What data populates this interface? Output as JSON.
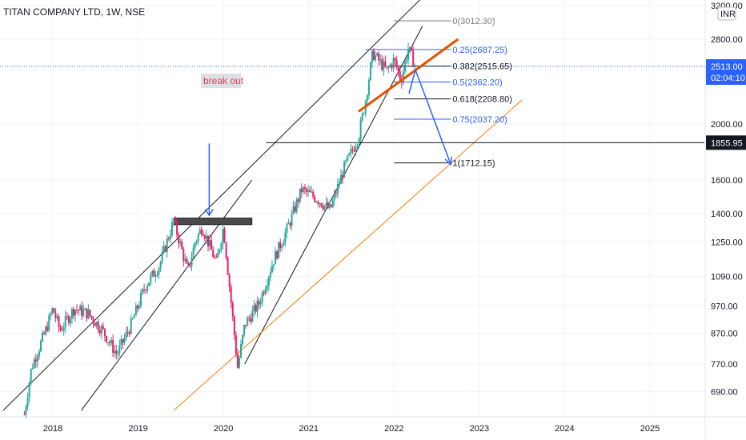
{
  "header": {
    "title": "TITAN COMPANY LTD, 1W, NSE"
  },
  "currency_badge": "INR",
  "chart_data": {
    "type": "candlestick",
    "symbol": "TITAN COMPANY LTD",
    "interval": "1W",
    "exchange": "NSE",
    "currency": "INR",
    "y_scale": "log",
    "ylim": [
      640,
      3300
    ],
    "xlim": [
      "2017-06",
      "2025-12"
    ],
    "x_ticks": [
      "2018",
      "2019",
      "2020",
      "2021",
      "2022",
      "2023",
      "2024",
      "2025"
    ],
    "y_ticks": [
      {
        "value": 3200,
        "label": "3200.00"
      },
      {
        "value": 2800,
        "label": "2800.00"
      },
      {
        "value": 2000,
        "label": "2000.00"
      },
      {
        "value": 1600,
        "label": "1600.00"
      },
      {
        "value": 1400,
        "label": "1400.00"
      },
      {
        "value": 1250,
        "label": "1250.00"
      },
      {
        "value": 1090,
        "label": "1090.00"
      },
      {
        "value": 970,
        "label": "970.00"
      },
      {
        "value": 870,
        "label": "870.00"
      },
      {
        "value": 770,
        "label": "770.00"
      },
      {
        "value": 690,
        "label": "690.00"
      }
    ],
    "price_path": [
      [
        "2017-09",
        630
      ],
      [
        "2017-10",
        760
      ],
      [
        "2017-12",
        880
      ],
      [
        "2018-01",
        960
      ],
      [
        "2018-02",
        880
      ],
      [
        "2018-04",
        960
      ],
      [
        "2018-06",
        940
      ],
      [
        "2018-08",
        880
      ],
      [
        "2018-10",
        800
      ],
      [
        "2018-12",
        900
      ],
      [
        "2019-02",
        1050
      ],
      [
        "2019-04",
        1140
      ],
      [
        "2019-06",
        1360
      ],
      [
        "2019-08",
        1110
      ],
      [
        "2019-09",
        1250
      ],
      [
        "2019-10",
        1330
      ],
      [
        "2019-12",
        1150
      ],
      [
        "2020-01",
        1330
      ],
      [
        "2020-03",
        760
      ],
      [
        "2020-04",
        900
      ],
      [
        "2020-06",
        980
      ],
      [
        "2020-08",
        1160
      ],
      [
        "2020-10",
        1320
      ],
      [
        "2020-12",
        1540
      ],
      [
        "2021-02",
        1490
      ],
      [
        "2021-04",
        1420
      ],
      [
        "2021-06",
        1680
      ],
      [
        "2021-08",
        1900
      ],
      [
        "2021-09",
        2200
      ],
      [
        "2021-10",
        2650
      ],
      [
        "2021-12",
        2470
      ],
      [
        "2022-01",
        2580
      ],
      [
        "2022-02",
        2380
      ],
      [
        "2022-03",
        2700
      ],
      [
        "2022-04",
        2513
      ]
    ],
    "current_price": {
      "value": 2513.0,
      "label": "2513.00",
      "countdown": "02:04:10"
    },
    "horizontal_level": {
      "value": 1855.95,
      "label": "1855.95"
    },
    "fib_retracement": [
      {
        "level": "0",
        "price": 3012.3,
        "label": "0(3012.30)",
        "color": "#787b86"
      },
      {
        "level": "0.25",
        "price": 2687.25,
        "label": "0.25(2687.25)",
        "color": "#2962ff"
      },
      {
        "level": "0.382",
        "price": 2515.65,
        "label": "0.382(2515.65)",
        "color": "#131722"
      },
      {
        "level": "0.5",
        "price": 2362.2,
        "label": "0.5(2362.20)",
        "color": "#2962ff"
      },
      {
        "level": "0.618",
        "price": 2208.8,
        "label": "0.618(2208.80)",
        "color": "#131722"
      },
      {
        "level": "0.75",
        "price": 2037.2,
        "label": "0.75(2037.20)",
        "color": "#2962ff"
      },
      {
        "level": "1",
        "price": 1712.15,
        "label": "1(1712.15)",
        "color": "#131722"
      }
    ],
    "annotations": [
      {
        "text": "break out",
        "type": "label",
        "color": "#e53950"
      },
      {
        "type": "resistance_box",
        "from": "2019-06",
        "to": "2020-05",
        "price_low": 1340,
        "price_high": 1375
      },
      {
        "type": "arrow_down",
        "at": "2019-11",
        "from_price": 1850,
        "to_price": 1390
      },
      {
        "type": "channel_upper",
        "points": [
          [
            "2017-06",
            640
          ],
          [
            "2022-06",
            3400
          ]
        ]
      },
      {
        "type": "channel_lower",
        "points": [
          [
            "2018-05",
            640
          ],
          [
            "2020-05",
            1600
          ]
        ]
      },
      {
        "type": "support_line",
        "points": [
          [
            "2020-04",
            770
          ],
          [
            "2022-05",
            2950
          ]
        ]
      },
      {
        "type": "orange_trendline",
        "points": [
          [
            "2019-06",
            640
          ],
          [
            "2023-07",
            2200
          ]
        ]
      },
      {
        "type": "orange_thick_trendline",
        "points": [
          [
            "2021-08",
            2100
          ],
          [
            "2022-10",
            2800
          ]
        ]
      },
      {
        "type": "projection_arrow",
        "points": [
          [
            "2022-04",
            2480
          ],
          [
            "2022-09",
            1700
          ]
        ]
      }
    ]
  }
}
